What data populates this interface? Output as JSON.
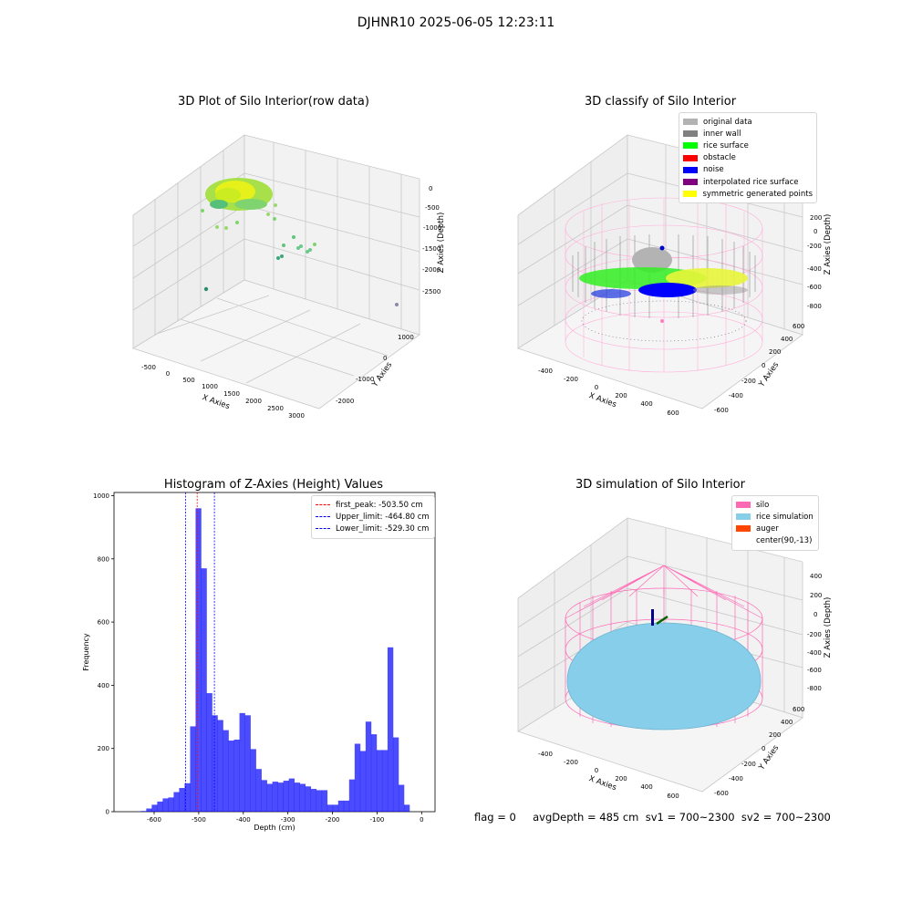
{
  "suptitle": "DJHNR10 2025-06-05 12:23:11",
  "footer": "flag = 0     avgDepth = 485 cm  sv1 = 700~2300  sv2 = 700~2300",
  "panels": {
    "raw": {
      "title": "3D Plot of Silo Interior(row data)",
      "xlabel": "X Axies",
      "ylabel": "Y Axies",
      "zlabel": "Z Axies (Depth)",
      "xticks": [
        "-500",
        "0",
        "500",
        "1000",
        "1500",
        "2000",
        "2500",
        "3000"
      ],
      "yticks": [
        "-2000",
        "-1000",
        "0",
        "1000"
      ],
      "zticks": [
        "0",
        "-500",
        "-1000",
        "-1500",
        "-2000",
        "-2500"
      ]
    },
    "classify": {
      "title": "3D classify of Silo Interior",
      "xlabel": "X Axies",
      "ylabel": "Y Axies",
      "zlabel": "Z Axies (Depth)",
      "xticks": [
        "-400",
        "-200",
        "0",
        "200",
        "400",
        "600"
      ],
      "yticks": [
        "-600",
        "-400",
        "-200",
        "0",
        "200",
        "400",
        "600"
      ],
      "zticks": [
        "200",
        "0",
        "-200",
        "-400",
        "-600",
        "-800"
      ],
      "legend": [
        {
          "label": "original data",
          "color": "#b3b3b3"
        },
        {
          "label": "inner wall",
          "color": "#808080"
        },
        {
          "label": "rice surface",
          "color": "#00ff00"
        },
        {
          "label": "obstacle",
          "color": "#ff0000"
        },
        {
          "label": "noise",
          "color": "#0000ff"
        },
        {
          "label": "interpolated rice surface",
          "color": "#800080"
        },
        {
          "label": "symmetric generated points",
          "color": "#ffff00"
        }
      ]
    },
    "simulation": {
      "title": "3D simulation of Silo Interior",
      "xlabel": "X Axies",
      "ylabel": "Y Axies",
      "zlabel": "Z Axies (Depth)",
      "xticks": [
        "-400",
        "-200",
        "0",
        "200",
        "400",
        "600"
      ],
      "yticks": [
        "-600",
        "-400",
        "-200",
        "0",
        "200",
        "400",
        "600"
      ],
      "zticks": [
        "400",
        "200",
        "0",
        "-200",
        "-400",
        "-600",
        "-800"
      ],
      "legend": [
        {
          "label": "silo",
          "color": "#ff69b4"
        },
        {
          "label": "rice simulation",
          "color": "#87ceeb"
        },
        {
          "label": "auger",
          "color": "#ff4500"
        },
        {
          "label": "center(90,-13)",
          "color": "#ffffff"
        }
      ]
    }
  },
  "chart_data": {
    "type": "bar",
    "title": "Histogram of Z-Axies (Height) Values",
    "xlabel": "Depth (cm)",
    "ylabel": "Frequency",
    "xlim": [
      -690,
      30
    ],
    "ylim": [
      0,
      1010
    ],
    "xticks": [
      -600,
      -500,
      -400,
      -300,
      -200,
      -100,
      0
    ],
    "yticks": [
      0,
      200,
      400,
      600,
      800,
      1000
    ],
    "bin_start": -630,
    "bin_width": 12.3,
    "values": [
      2,
      10,
      22,
      32,
      42,
      45,
      62,
      75,
      90,
      270,
      960,
      770,
      375,
      305,
      290,
      258,
      225,
      228,
      312,
      305,
      198,
      135,
      100,
      88,
      95,
      92,
      98,
      105,
      92,
      88,
      80,
      72,
      68,
      68,
      22,
      22,
      35,
      35,
      102,
      215,
      192,
      285,
      245,
      195,
      195,
      520,
      235,
      85,
      22
    ],
    "lines": [
      {
        "label": "first_peak: -503.50 cm",
        "x": -503.5,
        "color": "#ff0000"
      },
      {
        "label": "Upper_limit: -464.80 cm",
        "x": -464.8,
        "color": "#0000ff"
      },
      {
        "label": "Lower_limit: -529.30 cm",
        "x": -529.3,
        "color": "#0000ff"
      }
    ]
  }
}
